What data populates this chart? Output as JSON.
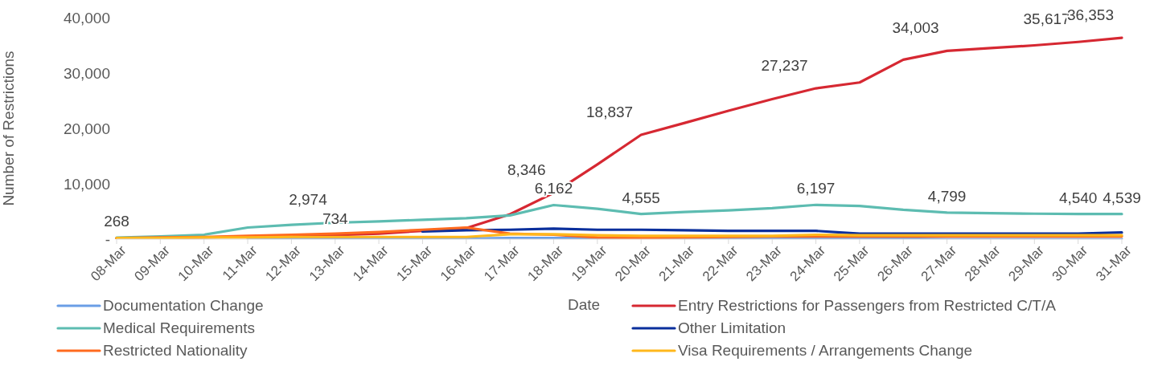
{
  "chart_data": {
    "type": "line",
    "xlabel": "Date",
    "ylabel": "Number of Restrictions",
    "categories": [
      "08-Mar",
      "09-Mar",
      "10-Mar",
      "11-Mar",
      "12-Mar",
      "13-Mar",
      "14-Mar",
      "15-Mar",
      "16-Mar",
      "17-Mar",
      "18-Mar",
      "19-Mar",
      "20-Mar",
      "21-Mar",
      "22-Mar",
      "23-Mar",
      "24-Mar",
      "25-Mar",
      "26-Mar",
      "27-Mar",
      "28-Mar",
      "29-Mar",
      "30-Mar",
      "31-Mar"
    ],
    "series": [
      {
        "name": "Documentation Change",
        "color": "#6a9ee6",
        "values": [
          null,
          null,
          null,
          100,
          100,
          100,
          100,
          100,
          100,
          200,
          200,
          200,
          100,
          100,
          100,
          100,
          100,
          100,
          100,
          0,
          0,
          0,
          0,
          0
        ]
      },
      {
        "name": "Entry Restrictions for Passengers from Restricted C/T/A",
        "color": "#d62832",
        "values": [
          100,
          200,
          300,
          500,
          600,
          734,
          1000,
          1500,
          2000,
          4500,
          8346,
          13500,
          18837,
          21000,
          23200,
          25300,
          27237,
          28300,
          32400,
          34003,
          34500,
          35000,
          35617,
          36353
        ],
        "value_labels": [
          null,
          null,
          null,
          null,
          null,
          "734",
          null,
          null,
          null,
          null,
          "8,346",
          null,
          "18,837",
          null,
          null,
          null,
          "27,237",
          null,
          null,
          "34,003",
          null,
          null,
          "35,617",
          "36,353"
        ]
      },
      {
        "name": "Medical Requirements",
        "color": "#5dbcb1",
        "values": [
          268,
          500,
          800,
          2100,
          2600,
          2974,
          3200,
          3500,
          3800,
          4300,
          6162,
          5500,
          4555,
          4900,
          5200,
          5600,
          6197,
          6000,
          5300,
          4799,
          4700,
          4600,
          4540,
          4539
        ],
        "value_labels": [
          "268",
          null,
          null,
          null,
          null,
          "2,974",
          null,
          null,
          null,
          null,
          "6,162",
          null,
          "4,555",
          null,
          null,
          null,
          "6,197",
          null,
          null,
          "4,799",
          null,
          null,
          "4,540",
          "4,539"
        ]
      },
      {
        "name": "Other Limitation",
        "color": "#0a2f9c",
        "values": [
          null,
          null,
          null,
          null,
          null,
          null,
          null,
          1400,
          1600,
          1700,
          1900,
          1700,
          1700,
          1600,
          1500,
          1500,
          1500,
          1000,
          1000,
          1000,
          1000,
          1000,
          1000,
          1200
        ]
      },
      {
        "name": "Restricted Nationality",
        "color": "#ff6a1f",
        "values": [
          200,
          300,
          400,
          600,
          800,
          1000,
          1300,
          1700,
          2100,
          1000,
          800,
          300,
          200,
          300,
          400,
          500,
          500,
          500,
          500,
          500,
          500,
          500,
          500,
          500
        ]
      },
      {
        "name": "Visa Requirements / Arrangements Change",
        "color": "#ffb81c",
        "values": [
          200,
          200,
          300,
          300,
          400,
          400,
          400,
          400,
          400,
          900,
          900,
          700,
          600,
          600,
          600,
          600,
          800,
          700,
          700,
          700,
          700,
          700,
          700,
          700
        ]
      }
    ],
    "ylim": [
      0,
      40000
    ],
    "yticks": [
      {
        "value": 0,
        "label": "-"
      },
      {
        "value": 10000,
        "label": "10,000"
      },
      {
        "value": 20000,
        "label": "20,000"
      },
      {
        "value": 30000,
        "label": "30,000"
      },
      {
        "value": 40000,
        "label": "40,000"
      }
    ],
    "grid": false,
    "legend": "bottom",
    "marker": "none",
    "line_style": "solid"
  }
}
